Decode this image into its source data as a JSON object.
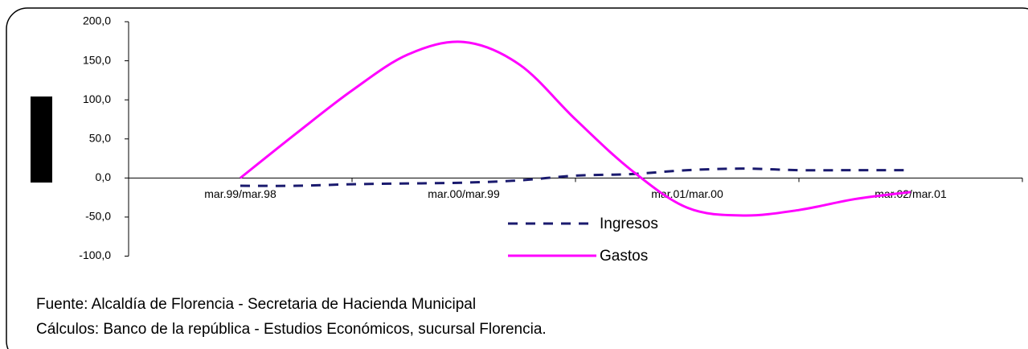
{
  "chart_data": {
    "type": "line",
    "categories": [
      null,
      null,
      "mar.99/mar.98",
      null,
      null,
      null,
      "mar.00/mar.99",
      null,
      null,
      null,
      "mar.01/mar.00",
      null,
      null,
      null,
      "mar.02/mar.01",
      null,
      null
    ],
    "series": [
      {
        "name": "Ingresos",
        "color": "#1a1a6e",
        "dash": true,
        "values": [
          null,
          null,
          -10,
          -10,
          -8,
          -7,
          -6,
          -3,
          3,
          5,
          10,
          12,
          10,
          10,
          10,
          null,
          null
        ]
      },
      {
        "name": "Gastos",
        "color": "#ff00ff",
        "dash": false,
        "values": [
          null,
          null,
          0,
          57,
          112,
          158,
          174,
          145,
          75,
          10,
          -38,
          -48,
          -41,
          -27,
          -18,
          null,
          null
        ]
      }
    ],
    "ylim": [
      -100,
      200
    ],
    "yticks": [
      {
        "value": -100,
        "label": "-100,0"
      },
      {
        "value": -50,
        "label": "-50,0"
      },
      {
        "value": 0,
        "label": "0,0"
      },
      {
        "value": 50,
        "label": "50,0"
      },
      {
        "value": 100,
        "label": "100,0"
      },
      {
        "value": 150,
        "label": "150,0"
      },
      {
        "value": 200,
        "label": "200,0"
      }
    ],
    "notes": [
      "Fuente: Alcaldía de Florencia - Secretaria de Hacienda Municipal",
      "Cálculos:  Banco de la república - Estudios Económicos, sucursal Florencia."
    ]
  }
}
